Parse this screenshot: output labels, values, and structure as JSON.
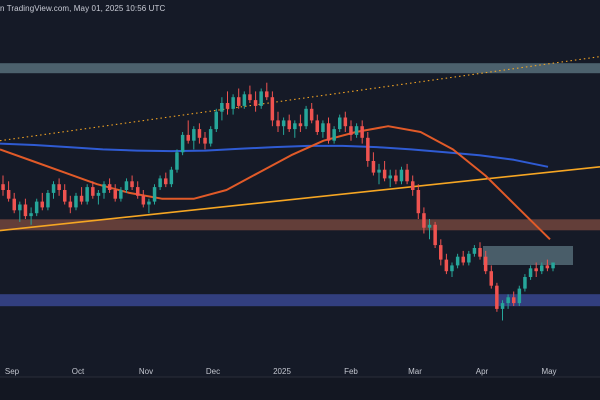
{
  "header": {
    "caption": "n TradingView.com, May 01, 2025 10:56 UTC"
  },
  "colors": {
    "background": "#151a27",
    "axis_bg": "#131722",
    "bull": "#26a69a",
    "bear": "#ef5350",
    "ma_long": "#2f5bd3",
    "ma_short": "#e15a28",
    "trendline": "#f6a623",
    "zone_gray": "#5f7a86",
    "zone_brown": "#7d4b40",
    "zone_blue": "#3c4c9e"
  },
  "chart_data": {
    "type": "candlestick",
    "x_tick_labels": [
      "Sep",
      "Oct",
      "Nov",
      "Dec",
      "2025",
      "Feb",
      "Mar",
      "Apr",
      "May"
    ],
    "ohlc_relative": [
      [
        0.52,
        0.55,
        0.48,
        0.5
      ],
      [
        0.5,
        0.53,
        0.46,
        0.47
      ],
      [
        0.47,
        0.49,
        0.42,
        0.43
      ],
      [
        0.43,
        0.46,
        0.39,
        0.45
      ],
      [
        0.45,
        0.47,
        0.4,
        0.41
      ],
      [
        0.41,
        0.44,
        0.38,
        0.42
      ],
      [
        0.42,
        0.47,
        0.41,
        0.46
      ],
      [
        0.46,
        0.49,
        0.43,
        0.44
      ],
      [
        0.44,
        0.5,
        0.43,
        0.49
      ],
      [
        0.49,
        0.53,
        0.47,
        0.52
      ],
      [
        0.52,
        0.54,
        0.48,
        0.5
      ],
      [
        0.5,
        0.52,
        0.45,
        0.46
      ],
      [
        0.46,
        0.48,
        0.42,
        0.44
      ],
      [
        0.44,
        0.49,
        0.43,
        0.48
      ],
      [
        0.48,
        0.51,
        0.45,
        0.46
      ],
      [
        0.46,
        0.52,
        0.45,
        0.51
      ],
      [
        0.51,
        0.53,
        0.47,
        0.48
      ],
      [
        0.48,
        0.5,
        0.45,
        0.49
      ],
      [
        0.49,
        0.53,
        0.47,
        0.52
      ],
      [
        0.52,
        0.54,
        0.49,
        0.5
      ],
      [
        0.5,
        0.52,
        0.46,
        0.47
      ],
      [
        0.47,
        0.51,
        0.46,
        0.5
      ],
      [
        0.5,
        0.54,
        0.49,
        0.53
      ],
      [
        0.53,
        0.55,
        0.5,
        0.51
      ],
      [
        0.51,
        0.53,
        0.47,
        0.48
      ],
      [
        0.48,
        0.5,
        0.44,
        0.45
      ],
      [
        0.45,
        0.47,
        0.42,
        0.46
      ],
      [
        0.46,
        0.52,
        0.45,
        0.51
      ],
      [
        0.51,
        0.55,
        0.5,
        0.54
      ],
      [
        0.54,
        0.56,
        0.51,
        0.52
      ],
      [
        0.52,
        0.58,
        0.51,
        0.57
      ],
      [
        0.57,
        0.64,
        0.56,
        0.63
      ],
      [
        0.63,
        0.7,
        0.62,
        0.69
      ],
      [
        0.69,
        0.74,
        0.66,
        0.67
      ],
      [
        0.67,
        0.72,
        0.64,
        0.71
      ],
      [
        0.71,
        0.73,
        0.66,
        0.68
      ],
      [
        0.68,
        0.7,
        0.64,
        0.66
      ],
      [
        0.66,
        0.72,
        0.65,
        0.71
      ],
      [
        0.71,
        0.78,
        0.7,
        0.77
      ],
      [
        0.77,
        0.82,
        0.74,
        0.8
      ],
      [
        0.8,
        0.84,
        0.76,
        0.78
      ],
      [
        0.78,
        0.83,
        0.76,
        0.82
      ],
      [
        0.82,
        0.85,
        0.78,
        0.79
      ],
      [
        0.79,
        0.84,
        0.78,
        0.83
      ],
      [
        0.83,
        0.86,
        0.8,
        0.81
      ],
      [
        0.81,
        0.84,
        0.77,
        0.79
      ],
      [
        0.79,
        0.85,
        0.78,
        0.84
      ],
      [
        0.84,
        0.87,
        0.81,
        0.82
      ],
      [
        0.82,
        0.84,
        0.72,
        0.74
      ],
      [
        0.74,
        0.77,
        0.7,
        0.72
      ],
      [
        0.72,
        0.75,
        0.69,
        0.74
      ],
      [
        0.74,
        0.76,
        0.7,
        0.71
      ],
      [
        0.71,
        0.74,
        0.68,
        0.73
      ],
      [
        0.73,
        0.76,
        0.7,
        0.72
      ],
      [
        0.72,
        0.79,
        0.71,
        0.78
      ],
      [
        0.78,
        0.8,
        0.73,
        0.74
      ],
      [
        0.74,
        0.76,
        0.69,
        0.7
      ],
      [
        0.7,
        0.74,
        0.68,
        0.73
      ],
      [
        0.73,
        0.75,
        0.66,
        0.67
      ],
      [
        0.67,
        0.72,
        0.66,
        0.71
      ],
      [
        0.71,
        0.76,
        0.7,
        0.75
      ],
      [
        0.75,
        0.77,
        0.7,
        0.72
      ],
      [
        0.72,
        0.74,
        0.67,
        0.69
      ],
      [
        0.69,
        0.73,
        0.68,
        0.72
      ],
      [
        0.72,
        0.74,
        0.66,
        0.68
      ],
      [
        0.68,
        0.7,
        0.58,
        0.6
      ],
      [
        0.6,
        0.63,
        0.55,
        0.56
      ],
      [
        0.56,
        0.59,
        0.52,
        0.57
      ],
      [
        0.57,
        0.6,
        0.53,
        0.54
      ],
      [
        0.54,
        0.57,
        0.51,
        0.55
      ],
      [
        0.55,
        0.57,
        0.52,
        0.53
      ],
      [
        0.53,
        0.58,
        0.52,
        0.57
      ],
      [
        0.57,
        0.59,
        0.52,
        0.53
      ],
      [
        0.53,
        0.55,
        0.48,
        0.5
      ],
      [
        0.5,
        0.52,
        0.4,
        0.42
      ],
      [
        0.42,
        0.44,
        0.35,
        0.37
      ],
      [
        0.37,
        0.4,
        0.33,
        0.38
      ],
      [
        0.38,
        0.39,
        0.3,
        0.31
      ],
      [
        0.31,
        0.33,
        0.24,
        0.26
      ],
      [
        0.26,
        0.28,
        0.21,
        0.22
      ],
      [
        0.22,
        0.25,
        0.2,
        0.24
      ],
      [
        0.24,
        0.28,
        0.23,
        0.27
      ],
      [
        0.27,
        0.29,
        0.24,
        0.25
      ],
      [
        0.25,
        0.29,
        0.24,
        0.28
      ],
      [
        0.28,
        0.31,
        0.27,
        0.3
      ],
      [
        0.3,
        0.32,
        0.26,
        0.27
      ],
      [
        0.27,
        0.29,
        0.21,
        0.22
      ],
      [
        0.22,
        0.24,
        0.16,
        0.17
      ],
      [
        0.17,
        0.18,
        0.08,
        0.09
      ],
      [
        0.09,
        0.12,
        0.05,
        0.11
      ],
      [
        0.11,
        0.14,
        0.09,
        0.13
      ],
      [
        0.13,
        0.15,
        0.1,
        0.11
      ],
      [
        0.11,
        0.17,
        0.1,
        0.16
      ],
      [
        0.16,
        0.21,
        0.15,
        0.2
      ],
      [
        0.2,
        0.24,
        0.19,
        0.23
      ],
      [
        0.23,
        0.25,
        0.2,
        0.22
      ],
      [
        0.22,
        0.25,
        0.21,
        0.24
      ],
      [
        0.24,
        0.26,
        0.22,
        0.23
      ],
      [
        0.23,
        0.25,
        0.22,
        0.25
      ]
    ],
    "moving_averages": [
      {
        "color": "#2f5bd3",
        "relative_values": [
          0.66,
          0.655,
          0.648,
          0.64,
          0.636,
          0.634,
          0.636,
          0.642,
          0.648,
          0.652,
          0.652,
          0.648,
          0.64,
          0.63,
          0.62,
          0.604,
          0.58
        ]
      },
      {
        "color": "#e15a28",
        "relative_values": [
          0.64,
          0.6,
          0.56,
          0.52,
          0.49,
          0.47,
          0.47,
          0.5,
          0.56,
          0.62,
          0.67,
          0.7,
          0.72,
          0.7,
          0.64,
          0.55,
          0.44,
          0.33
        ]
      }
    ],
    "horizontal_zones": [
      {
        "color": "#5f7a86",
        "level": 0.92
      },
      {
        "color": "#7d4b40",
        "level": 0.38
      },
      {
        "color": "#3c4c9e",
        "level": 0.12
      }
    ],
    "trendlines": [
      {
        "style": "solid",
        "color": "#f6a623",
        "from": 0.36,
        "to": 0.58
      },
      {
        "style": "dotted",
        "color": "#f6a623",
        "from": 0.67,
        "to": 0.96
      }
    ]
  }
}
